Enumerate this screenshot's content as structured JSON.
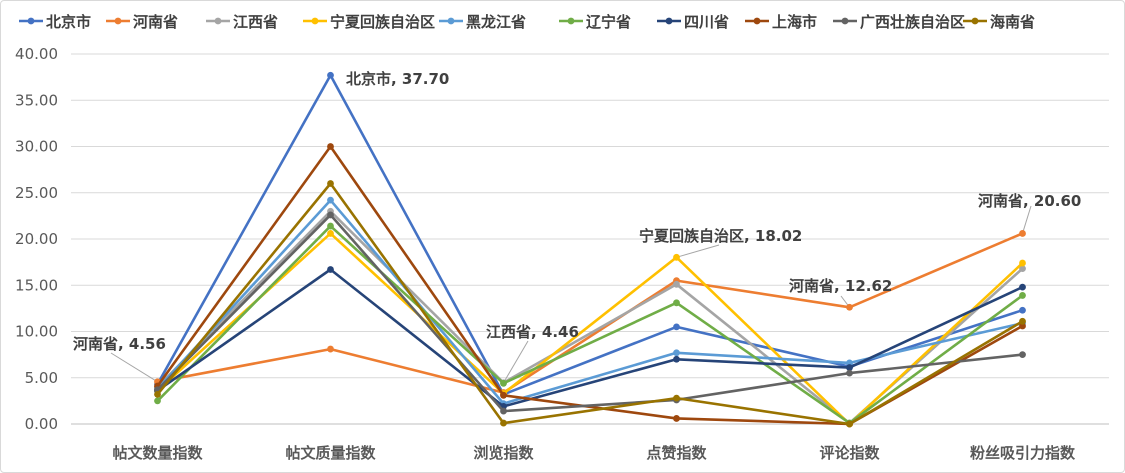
{
  "chart_data": {
    "type": "line",
    "title": "",
    "xlabel": "",
    "ylabel": "",
    "ylim": [
      0,
      40
    ],
    "yticks": [
      "0.00",
      "5.00",
      "10.00",
      "15.00",
      "20.00",
      "25.00",
      "30.00",
      "35.00",
      "40.00"
    ],
    "ytick_values": [
      0,
      5,
      10,
      15,
      20,
      25,
      30,
      35,
      40
    ],
    "grid": true,
    "legend_position": "top",
    "categories": [
      "帖文数量指数",
      "帖文质量指数",
      "浏览指数",
      "点赞指数",
      "评论指数",
      "粉丝吸引力指数"
    ],
    "series": [
      {
        "name": "北京市",
        "color": "#4472C4",
        "values": [
          4.3,
          37.7,
          3.2,
          10.5,
          6.2,
          12.3
        ]
      },
      {
        "name": "河南省",
        "color": "#ED7D31",
        "values": [
          4.56,
          8.1,
          3.4,
          15.5,
          12.62,
          20.6
        ]
      },
      {
        "name": "江西省",
        "color": "#A5A5A5",
        "values": [
          4.0,
          23.0,
          4.46,
          15.1,
          0.1,
          16.8
        ]
      },
      {
        "name": "宁夏回族自治区",
        "color": "#FFC000",
        "values": [
          3.6,
          20.6,
          3.3,
          18.02,
          0.0,
          17.4
        ]
      },
      {
        "name": "黑龙江省",
        "color": "#5B9BD5",
        "values": [
          3.8,
          24.2,
          2.2,
          7.7,
          6.6,
          10.9
        ]
      },
      {
        "name": "辽宁省",
        "color": "#70AD47",
        "values": [
          2.5,
          21.4,
          4.4,
          13.1,
          0.1,
          13.9
        ]
      },
      {
        "name": "四川省",
        "color": "#264478",
        "values": [
          3.6,
          16.7,
          1.9,
          7.0,
          6.1,
          14.8
        ]
      },
      {
        "name": "上海市",
        "color": "#9E480E",
        "values": [
          4.1,
          30.0,
          3.1,
          0.6,
          0.0,
          10.6
        ]
      },
      {
        "name": "广西壮族自治区",
        "color": "#636363",
        "values": [
          3.7,
          22.6,
          1.4,
          2.6,
          5.5,
          7.5
        ]
      },
      {
        "name": "海南省",
        "color": "#997300",
        "values": [
          3.2,
          26.0,
          0.1,
          2.8,
          0.0,
          11.1
        ]
      }
    ],
    "annotations": [
      {
        "text": "北京市, 37.70",
        "series": "北京市",
        "category": "帖文质量指数"
      },
      {
        "text": "河南省, 4.56",
        "series": "河南省",
        "category": "帖文数量指数"
      },
      {
        "text": "江西省, 4.46",
        "series": "江西省",
        "category": "浏览指数"
      },
      {
        "text": "宁夏回族自治区, 18.02",
        "series": "宁夏回族自治区",
        "category": "点赞指数"
      },
      {
        "text": "河南省, 12.62",
        "series": "河南省",
        "category": "评论指数"
      },
      {
        "text": "河南省, 20.60",
        "series": "河南省",
        "category": "粉丝吸引力指数"
      }
    ]
  }
}
